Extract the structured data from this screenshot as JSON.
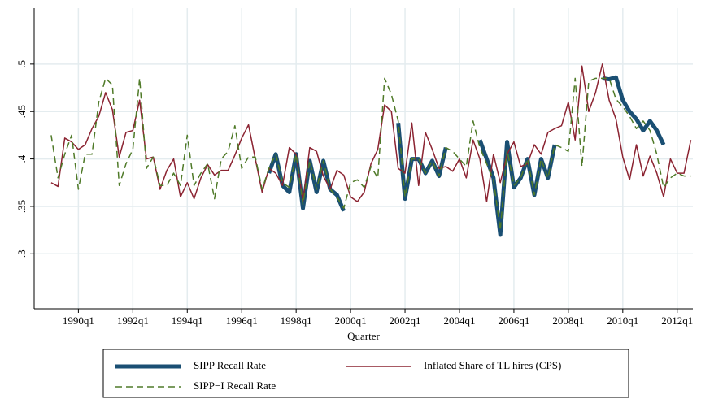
{
  "chart_data": {
    "type": "line",
    "x_label": "Quarter",
    "x": [
      116,
      117,
      118,
      119,
      120,
      121,
      122,
      123,
      124,
      125,
      126,
      127,
      128,
      129,
      130,
      131,
      132,
      133,
      134,
      135,
      136,
      137,
      138,
      139,
      140,
      141,
      142,
      143,
      144,
      145,
      146,
      147,
      148,
      149,
      150,
      151,
      152,
      153,
      154,
      155,
      156,
      157,
      158,
      159,
      160,
      161,
      162,
      163,
      164,
      165,
      166,
      167,
      168,
      169,
      170,
      171,
      172,
      173,
      174,
      175,
      176,
      177,
      178,
      179,
      180,
      181,
      182,
      183,
      184,
      185,
      186,
      187,
      188,
      189,
      190,
      191,
      192,
      193,
      194,
      195,
      196,
      197,
      198,
      199,
      200,
      201,
      202,
      203,
      204,
      205,
      206,
      207,
      208,
      209,
      210
    ],
    "xlim": [
      113.5,
      210.3
    ],
    "xticks": [
      {
        "value": 120,
        "label": "1990q1"
      },
      {
        "value": 128,
        "label": "1992q1"
      },
      {
        "value": 136,
        "label": "1994q1"
      },
      {
        "value": 144,
        "label": "1996q1"
      },
      {
        "value": 152,
        "label": "1998q1"
      },
      {
        "value": 160,
        "label": "2000q1"
      },
      {
        "value": 168,
        "label": "2002q1"
      },
      {
        "value": 176,
        "label": "2004q1"
      },
      {
        "value": 184,
        "label": "2006q1"
      },
      {
        "value": 192,
        "label": "2008q1"
      },
      {
        "value": 200,
        "label": "2010q1"
      },
      {
        "value": 208,
        "label": "2012q1"
      }
    ],
    "ylim": [
      0.242,
      0.559
    ],
    "yticks": [
      {
        "value": 0.3,
        "label": ".3"
      },
      {
        "value": 0.35,
        "label": ".35"
      },
      {
        "value": 0.4,
        "label": ".4"
      },
      {
        "value": 0.45,
        "label": ".45"
      },
      {
        "value": 0.5,
        "label": ".5"
      }
    ],
    "grid": true,
    "legend": "bottom",
    "series": [
      {
        "name": "SIPP Recall Rate",
        "color": "#1a4f73",
        "line_style": "solid",
        "line_width": 5,
        "values": [
          null,
          null,
          null,
          null,
          null,
          null,
          null,
          null,
          null,
          null,
          null,
          null,
          null,
          null,
          null,
          null,
          null,
          null,
          null,
          null,
          null,
          null,
          null,
          null,
          null,
          null,
          null,
          null,
          null,
          null,
          null,
          null,
          0.385,
          0.405,
          0.372,
          0.365,
          0.405,
          0.348,
          0.398,
          0.365,
          0.398,
          0.368,
          0.362,
          0.345,
          null,
          null,
          null,
          null,
          null,
          null,
          null,
          0.438,
          0.358,
          0.4,
          0.4,
          0.385,
          0.398,
          0.382,
          0.412,
          null,
          null,
          null,
          null,
          0.42,
          0.4,
          0.38,
          0.32,
          0.418,
          0.37,
          0.38,
          0.4,
          0.362,
          0.4,
          0.38,
          0.415,
          null,
          null,
          null,
          null,
          null,
          null,
          0.485,
          0.484,
          0.486,
          0.462,
          0.45,
          0.442,
          0.43,
          0.44,
          0.43,
          0.415,
          null,
          null,
          null,
          null
        ]
      },
      {
        "name": "Inflated Share of TL hires (CPS)",
        "color": "#8b2331",
        "line_style": "solid",
        "line_width": 1.5,
        "values": [
          0.375,
          0.371,
          0.422,
          0.418,
          0.41,
          0.415,
          0.432,
          0.445,
          0.47,
          0.452,
          0.402,
          0.428,
          0.43,
          0.462,
          0.4,
          0.402,
          0.368,
          0.388,
          0.4,
          0.36,
          0.375,
          0.358,
          0.38,
          0.394,
          0.383,
          0.388,
          0.388,
          0.404,
          0.422,
          0.436,
          0.4,
          0.365,
          0.39,
          0.385,
          0.372,
          0.412,
          0.405,
          0.355,
          0.412,
          0.408,
          0.382,
          0.368,
          0.388,
          0.383,
          0.36,
          0.355,
          0.365,
          0.395,
          0.41,
          0.457,
          0.45,
          0.39,
          0.385,
          0.438,
          0.372,
          0.428,
          0.41,
          0.39,
          0.392,
          0.387,
          0.4,
          0.38,
          0.42,
          0.4,
          0.355,
          0.405,
          0.375,
          0.405,
          0.418,
          0.392,
          0.395,
          0.415,
          0.405,
          0.428,
          0.432,
          0.435,
          0.46,
          0.42,
          0.498,
          0.45,
          0.47,
          0.5,
          0.462,
          0.442,
          0.402,
          0.378,
          0.415,
          0.382,
          0.403,
          0.385,
          0.36,
          0.4,
          0.385,
          0.385,
          0.42
        ]
      },
      {
        "name": "SIPP−I Recall Rate",
        "color": "#4f7a28",
        "line_style": "dashed",
        "line_width": 1.5,
        "values": [
          0.425,
          0.38,
          0.405,
          0.425,
          0.368,
          0.405,
          0.405,
          0.46,
          0.485,
          0.478,
          0.372,
          0.395,
          0.41,
          0.485,
          0.39,
          0.402,
          0.372,
          0.372,
          0.385,
          0.372,
          0.425,
          0.372,
          0.385,
          0.395,
          0.358,
          0.4,
          0.408,
          0.435,
          0.39,
          0.402,
          0.402,
          0.368,
          0.39,
          0.405,
          0.375,
          0.37,
          0.405,
          0.352,
          0.398,
          0.368,
          0.398,
          0.368,
          0.36,
          0.348,
          0.375,
          0.378,
          0.37,
          0.392,
          0.38,
          0.485,
          0.468,
          0.44,
          0.36,
          0.4,
          0.4,
          0.385,
          0.398,
          0.382,
          0.412,
          0.408,
          0.4,
          0.392,
          0.44,
          0.412,
          0.395,
          0.378,
          0.325,
          0.41,
          0.372,
          0.38,
          0.4,
          0.362,
          0.4,
          0.38,
          0.415,
          0.412,
          0.408,
          0.485,
          0.392,
          0.482,
          0.485,
          0.485,
          0.485,
          0.463,
          0.455,
          0.445,
          0.432,
          0.44,
          0.43,
          0.405,
          0.37,
          0.38,
          0.385,
          0.382,
          0.382
        ]
      }
    ]
  }
}
